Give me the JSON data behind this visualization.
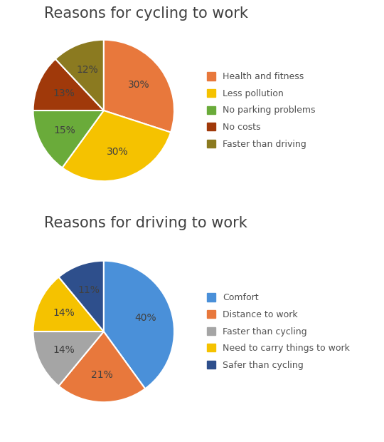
{
  "cycling": {
    "title": "Reasons for cycling to work",
    "labels": [
      "Health and fitness",
      "Less pollution",
      "No parking problems",
      "No costs",
      "Faster than driving"
    ],
    "values": [
      30,
      30,
      15,
      13,
      12
    ],
    "colors": [
      "#E8783C",
      "#F5C200",
      "#6AAB3A",
      "#A0390A",
      "#8B7A20"
    ],
    "pct_labels": [
      "30%",
      "30%",
      "15%",
      "13%",
      "12%"
    ],
    "startangle": 90
  },
  "driving": {
    "title": "Reasons for driving to work",
    "labels": [
      "Comfort",
      "Distance to work",
      "Faster than cycling",
      "Need to carry things to work",
      "Safer than cycling"
    ],
    "values": [
      40,
      21,
      14,
      14,
      11
    ],
    "colors": [
      "#4A90D9",
      "#E8783C",
      "#A5A5A5",
      "#F5C200",
      "#2E4F8C"
    ],
    "pct_labels": [
      "40%",
      "21%",
      "14%",
      "14%",
      "11%"
    ],
    "startangle": 90
  },
  "background_color": "#FFFFFF",
  "title_fontsize": 15,
  "title_color": "#404040",
  "legend_fontsize": 9,
  "pct_fontsize": 10
}
